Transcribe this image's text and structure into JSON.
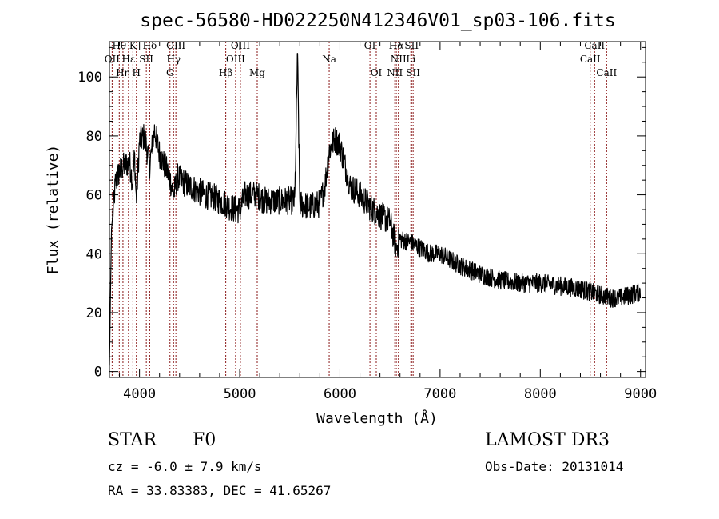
{
  "chart_data": {
    "type": "line",
    "title": "spec-56580-HD022250N412346V01_sp03-106.fits",
    "xlabel": "Wavelength (Å)",
    "ylabel": "Flux (relative)",
    "xlim": [
      3700,
      9050
    ],
    "ylim": [
      -2,
      112
    ],
    "xticks": [
      4000,
      5000,
      6000,
      7000,
      8000,
      9000
    ],
    "xtick_labels": [
      "4000",
      "5000",
      "6000",
      "7000",
      "8000",
      "9000"
    ],
    "yticks": [
      0,
      20,
      40,
      60,
      80,
      100
    ],
    "ytick_labels": [
      "0",
      "20",
      "40",
      "60",
      "80",
      "100"
    ],
    "spectrum_anchors": {
      "x": [
        3700,
        3720,
        3760,
        3800,
        3850,
        3900,
        3933,
        3950,
        3968,
        4000,
        4050,
        4101,
        4150,
        4200,
        4250,
        4300,
        4340,
        4380,
        4450,
        4550,
        4650,
        4750,
        4861,
        4900,
        4960,
        5007,
        5050,
        5100,
        5175,
        5250,
        5350,
        5450,
        5550,
        5577,
        5600,
        5700,
        5800,
        5850,
        5893,
        5950,
        6000,
        6050,
        6100,
        6200,
        6300,
        6400,
        6500,
        6563,
        6600,
        6700,
        6800,
        6900,
        7000,
        7200,
        7400,
        7600,
        7800,
        8000,
        8200,
        8400,
        8500,
        8600,
        8700,
        8800,
        8900,
        9000
      ],
      "y": [
        2,
        48,
        64,
        68,
        70,
        71,
        64,
        74,
        58,
        78,
        80,
        70,
        82,
        74,
        70,
        66,
        60,
        66,
        64,
        62,
        60,
        59,
        57,
        56,
        55,
        55,
        60,
        60,
        60,
        58,
        58,
        58,
        58,
        108,
        57,
        56,
        57,
        63,
        75,
        79,
        77,
        70,
        63,
        60,
        56,
        53,
        51,
        42,
        45,
        44,
        42,
        40,
        40,
        36,
        33,
        31,
        30,
        30,
        29,
        28,
        27,
        26,
        25,
        25,
        26,
        27
      ],
      "noise_amplitude": 4
    },
    "lines_top_row": [
      {
        "name": "Hθ",
        "x": 3798
      },
      {
        "name": "K",
        "x": 3934
      },
      {
        "name": "Hδ",
        "x": 4102
      },
      {
        "name": "OIII",
        "x": 4363
      },
      {
        "name": "OIII",
        "x": 5007
      },
      {
        "name": "OI",
        "x": 6300
      },
      {
        "name": "Hα",
        "x": 6563
      },
      {
        "name": "SII",
        "x": 6716
      },
      {
        "name": "CaII",
        "x": 8542
      }
    ],
    "lines_mid_row": [
      {
        "name": "OII",
        "x": 3727
      },
      {
        "name": "Hε",
        "x": 3890
      },
      {
        "name": "SII",
        "x": 4068
      },
      {
        "name": "Hγ",
        "x": 4340
      },
      {
        "name": "OIII",
        "x": 4959
      },
      {
        "name": "Na",
        "x": 5893
      },
      {
        "name": "NII",
        "x": 6584
      },
      {
        "name": "Li",
        "x": 6708
      },
      {
        "name": "CaII",
        "x": 8498
      }
    ],
    "lines_bottom_row": [
      {
        "name": "Hη",
        "x": 3835
      },
      {
        "name": "H",
        "x": 3969
      },
      {
        "name": "G",
        "x": 4304
      },
      {
        "name": "Hβ",
        "x": 4861
      },
      {
        "name": "Mg",
        "x": 5175
      },
      {
        "name": "OI",
        "x": 6363
      },
      {
        "name": "NII",
        "x": 6548
      },
      {
        "name": "SII",
        "x": 6731
      },
      {
        "name": "CaII",
        "x": 8662
      }
    ]
  },
  "info": {
    "object_class": "STAR",
    "subclass": "F0",
    "survey": "LAMOST DR3",
    "redshift_text": "cz = -6.0 ± 7.9 km/s",
    "obs_date": "Obs-Date: 20131014",
    "coords": "RA =  33.83383, DEC =  41.65267"
  },
  "colors": {
    "spectrum": "#000000",
    "line_markers": "#8b1a1a",
    "axes": "#000000"
  }
}
